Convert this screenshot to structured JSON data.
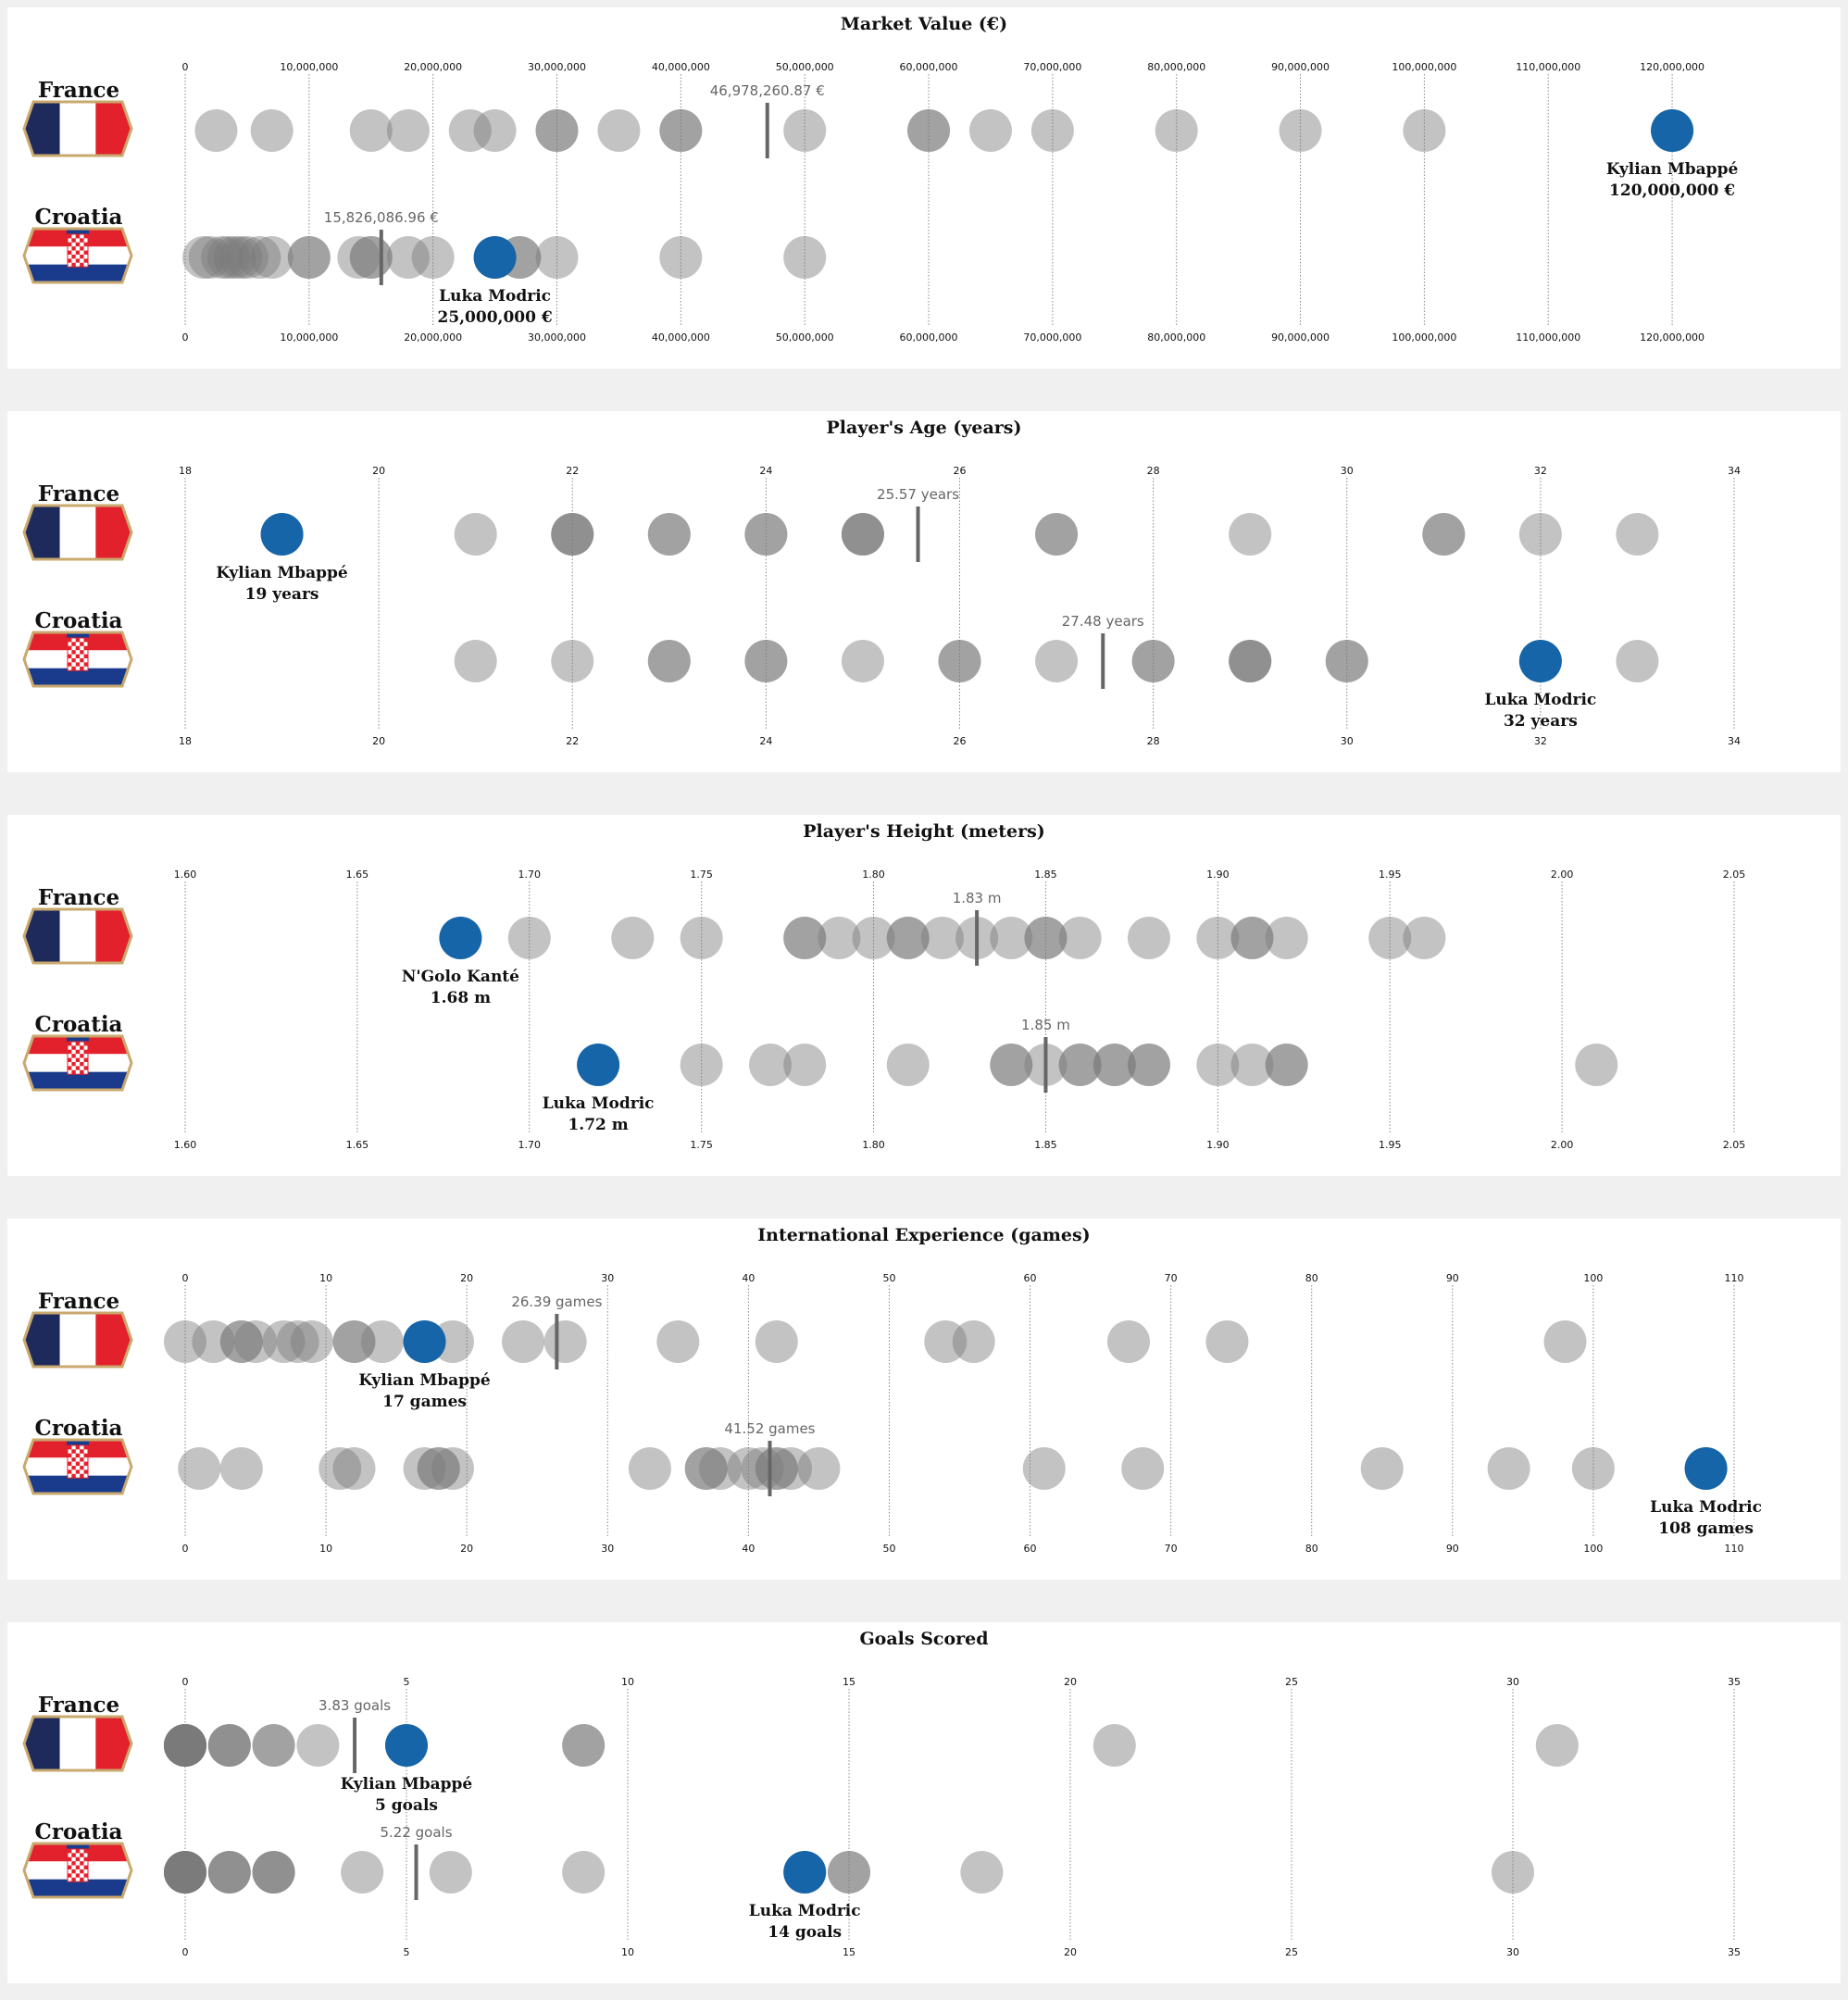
{
  "countries": [
    "France",
    "Croatia"
  ],
  "colors": {
    "highlight": "#1565a8",
    "mean_marker": "#666666",
    "france_blue": "#1f2a5c",
    "france_red": "#e3212c",
    "croatia_red": "#e3212c",
    "croatia_blue": "#1a3a8c",
    "flag_border": "#c9a96e"
  },
  "chart_data": [
    {
      "type": "scatter",
      "title": "Market Value (€)",
      "ticks": [
        0,
        10000000,
        20000000,
        30000000,
        40000000,
        50000000,
        60000000,
        70000000,
        80000000,
        90000000,
        100000000,
        110000000,
        120000000
      ],
      "tick_labels": [
        "0",
        "10,000,000",
        "20,000,000",
        "30,000,000",
        "40,000,000",
        "50,000,000",
        "60,000,000",
        "70,000,000",
        "80,000,000",
        "90,000,000",
        "100,000,000",
        "110,000,000",
        "120,000,000"
      ],
      "xlim": [
        0,
        125000000
      ],
      "series": [
        {
          "name": "France",
          "values": [
            2500000,
            7000000,
            15000000,
            18000000,
            23000000,
            25000000,
            30000000,
            30000000,
            35000000,
            40000000,
            40000000,
            50000000,
            60000000,
            60000000,
            65000000,
            70000000,
            80000000,
            90000000,
            100000000,
            120000000
          ],
          "mean": 46978260.87,
          "mean_label": "46,978,260.87 €",
          "highlight": {
            "value": 120000000,
            "name": "Kylian Mbappé",
            "label": "120,000,000 €"
          }
        },
        {
          "name": "Croatia",
          "values": [
            1500000,
            2000000,
            3000000,
            3500000,
            4000000,
            4500000,
            5000000,
            6000000,
            7000000,
            10000000,
            10000000,
            14000000,
            15000000,
            15000000,
            18000000,
            20000000,
            25000000,
            27000000,
            27000000,
            30000000,
            40000000,
            50000000
          ],
          "mean": 15826086.96,
          "mean_label": "15,826,086.96 €",
          "highlight": {
            "value": 25000000,
            "name": "Luka Modric",
            "label": "25,000,000 €"
          }
        }
      ]
    },
    {
      "type": "scatter",
      "title": "Player's Age (years)",
      "ticks": [
        18,
        20,
        22,
        24,
        26,
        28,
        30,
        32,
        34
      ],
      "tick_labels": [
        "18",
        "20",
        "22",
        "24",
        "26",
        "28",
        "30",
        "32",
        "34"
      ],
      "xlim": [
        18,
        34
      ],
      "series": [
        {
          "name": "France",
          "values": [
            19,
            21,
            22,
            22,
            22,
            23,
            23,
            24,
            24,
            25,
            25,
            25,
            27,
            27,
            29,
            31,
            31,
            32,
            33
          ],
          "mean": 25.57,
          "mean_label": "25.57 years",
          "highlight": {
            "value": 19,
            "name": "Kylian Mbappé",
            "label": "19 years"
          }
        },
        {
          "name": "Croatia",
          "values": [
            21,
            22,
            23,
            23,
            24,
            24,
            25,
            26,
            26,
            27,
            28,
            28,
            29,
            29,
            29,
            30,
            30,
            32,
            33
          ],
          "mean": 27.48,
          "mean_label": "27.48 years",
          "highlight": {
            "value": 32,
            "name": "Luka Modric",
            "label": "32 years"
          }
        }
      ]
    },
    {
      "type": "scatter",
      "title": "Player's Height (meters)",
      "ticks": [
        1.6,
        1.65,
        1.7,
        1.75,
        1.8,
        1.85,
        1.9,
        1.95,
        2.0,
        2.05
      ],
      "tick_labels": [
        "1.60",
        "1.65",
        "1.70",
        "1.75",
        "1.80",
        "1.85",
        "1.90",
        "1.95",
        "2.00",
        "2.05"
      ],
      "xlim": [
        1.6,
        2.05
      ],
      "series": [
        {
          "name": "France",
          "values": [
            1.68,
            1.7,
            1.73,
            1.75,
            1.78,
            1.78,
            1.79,
            1.8,
            1.81,
            1.81,
            1.82,
            1.83,
            1.84,
            1.85,
            1.85,
            1.86,
            1.88,
            1.9,
            1.91,
            1.91,
            1.92,
            1.95,
            1.96
          ],
          "mean": 1.83,
          "mean_label": "1.83 m",
          "highlight": {
            "value": 1.68,
            "name": "N'Golo Kanté",
            "label": "1.68 m"
          }
        },
        {
          "name": "Croatia",
          "values": [
            1.72,
            1.75,
            1.77,
            1.78,
            1.81,
            1.84,
            1.84,
            1.85,
            1.86,
            1.86,
            1.87,
            1.87,
            1.88,
            1.88,
            1.9,
            1.91,
            1.92,
            1.92,
            2.01
          ],
          "mean": 1.85,
          "mean_label": "1.85 m",
          "highlight": {
            "value": 1.72,
            "name": "Luka Modric",
            "label": "1.72 m"
          }
        }
      ]
    },
    {
      "type": "scatter",
      "title": "International Experience (games)",
      "ticks": [
        0,
        10,
        20,
        30,
        40,
        50,
        60,
        70,
        80,
        90,
        100,
        110
      ],
      "tick_labels": [
        "0",
        "10",
        "20",
        "30",
        "40",
        "50",
        "60",
        "70",
        "80",
        "90",
        "100",
        "110"
      ],
      "xlim": [
        0,
        110
      ],
      "series": [
        {
          "name": "France",
          "values": [
            0,
            2,
            4,
            4,
            5,
            7,
            8,
            9,
            12,
            12,
            14,
            17,
            19,
            24,
            27,
            35,
            42,
            54,
            56,
            67,
            74,
            98
          ],
          "mean": 26.39,
          "mean_label": "26.39 games",
          "highlight": {
            "value": 17,
            "name": "Kylian Mbappé",
            "label": "17 games"
          }
        },
        {
          "name": "Croatia",
          "values": [
            1,
            4,
            11,
            12,
            17,
            18,
            18,
            19,
            33,
            37,
            37,
            38,
            40,
            41,
            42,
            42,
            43,
            45,
            61,
            68,
            85,
            94,
            100,
            108
          ],
          "mean": 41.52,
          "mean_label": "41.52 games",
          "highlight": {
            "value": 108,
            "name": "Luka Modric",
            "label": "108 games"
          }
        }
      ]
    },
    {
      "type": "scatter",
      "title": "Goals Scored",
      "ticks": [
        0,
        5,
        10,
        15,
        20,
        25,
        30,
        35
      ],
      "tick_labels": [
        "0",
        "5",
        "10",
        "15",
        "20",
        "25",
        "30",
        "35"
      ],
      "xlim": [
        0,
        35
      ],
      "series": [
        {
          "name": "France",
          "values": [
            0,
            0,
            0,
            0,
            0,
            0,
            0,
            0,
            1,
            1,
            1,
            2,
            2,
            3,
            5,
            9,
            9,
            21,
            31
          ],
          "mean": 3.83,
          "mean_label": "3.83 goals",
          "highlight": {
            "value": 5,
            "name": "Kylian Mbappé",
            "label": "5 goals"
          }
        },
        {
          "name": "Croatia",
          "values": [
            0,
            0,
            0,
            0,
            0,
            0,
            0,
            1,
            1,
            1,
            2,
            2,
            2,
            4,
            6,
            9,
            14,
            15,
            15,
            18,
            30
          ],
          "mean": 5.22,
          "mean_label": "5.22 goals",
          "highlight": {
            "value": 14,
            "name": "Luka Modric",
            "label": "14 goals"
          }
        }
      ]
    }
  ]
}
